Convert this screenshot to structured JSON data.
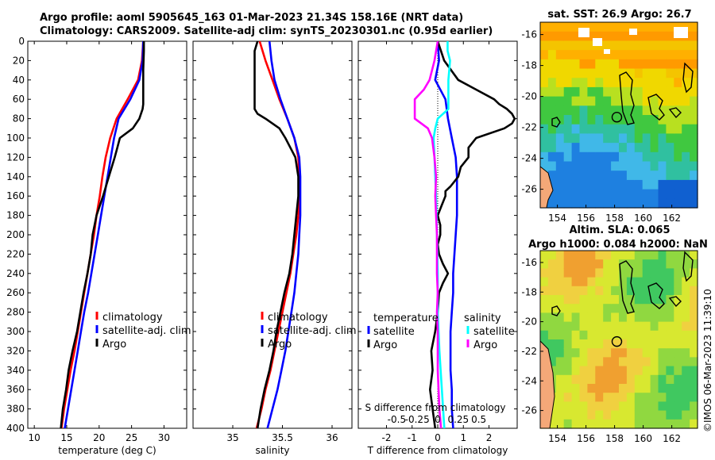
{
  "title": {
    "line1": "Argo profile: aoml 5905645_163 01-Mar-2023 21.34S 158.16E (NRT data)",
    "line2": "Climatology: CARS2009. Satellite-adj clim: synTS_20230301.nc (0.95d earlier)"
  },
  "watermark": "©IMOS 06-Mar-2023 11:39:10",
  "colors": {
    "climatology": "#ff0000",
    "satellite": "#0000ff",
    "argo": "#000000",
    "sat_salinity": "#00ffff",
    "argo_salinity": "#ff00ff"
  },
  "chart_data": [
    {
      "id": "temperature",
      "type": "line",
      "xlabel": "temperature (deg C)",
      "xlim": [
        9,
        33.5
      ],
      "xticks": [
        10,
        15,
        20,
        25,
        30
      ],
      "ylim": [
        0,
        400
      ],
      "yticks": [
        0,
        20,
        40,
        60,
        80,
        100,
        120,
        140,
        160,
        180,
        200,
        220,
        240,
        260,
        280,
        300,
        320,
        340,
        360,
        380,
        400
      ],
      "legend": [
        "climatology",
        "satellite-adj. clim",
        "Argo"
      ],
      "series": [
        {
          "name": "climatology",
          "color": "#ff0000",
          "depth": [
            0,
            20,
            40,
            60,
            80,
            100,
            120,
            140,
            160,
            180,
            200,
            220,
            240,
            260,
            280,
            300,
            320,
            340,
            360,
            380,
            400
          ],
          "values": [
            26.8,
            26.6,
            26.0,
            24.4,
            22.7,
            21.7,
            21.0,
            20.5,
            20.1,
            19.6,
            19.2,
            18.7,
            18.2,
            17.7,
            17.2,
            16.7,
            16.2,
            15.6,
            15.1,
            14.6,
            14.2
          ]
        },
        {
          "name": "satellite-adj. clim",
          "color": "#0000ff",
          "depth": [
            0,
            20,
            40,
            60,
            80,
            100,
            120,
            140,
            160,
            180,
            200,
            220,
            240,
            260,
            280,
            300,
            320,
            340,
            360,
            380,
            400
          ],
          "values": [
            26.8,
            26.7,
            26.2,
            24.8,
            23.0,
            22.3,
            21.8,
            21.3,
            20.8,
            20.3,
            19.8,
            19.3,
            18.8,
            18.3,
            17.7,
            17.2,
            16.7,
            16.2,
            15.7,
            15.2,
            14.7
          ]
        },
        {
          "name": "Argo",
          "color": "#000000",
          "depth": [
            0,
            10,
            30,
            50,
            65,
            70,
            80,
            90,
            100,
            110,
            120,
            140,
            160,
            180,
            200,
            220,
            240,
            260,
            280,
            300,
            320,
            340,
            360,
            380,
            400
          ],
          "values": [
            26.9,
            26.9,
            26.8,
            26.8,
            26.8,
            26.7,
            26.2,
            25.2,
            23.2,
            22.8,
            22.4,
            21.5,
            20.6,
            19.6,
            19.0,
            18.7,
            18.2,
            17.6,
            17.1,
            16.6,
            15.9,
            15.3,
            14.9,
            14.4,
            14.1
          ]
        }
      ]
    },
    {
      "id": "salinity",
      "type": "line",
      "xlabel": "salinity",
      "xlim": [
        34.6,
        36.2
      ],
      "xticks": [
        35,
        35.5,
        36
      ],
      "ylim": [
        0,
        400
      ],
      "legend": [
        "climatology",
        "satellite-adj. clim",
        "Argo"
      ],
      "series": [
        {
          "name": "climatology",
          "color": "#ff0000",
          "depth": [
            0,
            20,
            40,
            60,
            80,
            100,
            120,
            140,
            160,
            180,
            200,
            220,
            240,
            260,
            280,
            300,
            320,
            340,
            360,
            380,
            400
          ],
          "values": [
            35.27,
            35.33,
            35.4,
            35.47,
            35.55,
            35.62,
            35.66,
            35.67,
            35.67,
            35.66,
            35.64,
            35.61,
            35.58,
            35.54,
            35.5,
            35.46,
            35.42,
            35.38,
            35.33,
            35.29,
            35.24
          ]
        },
        {
          "name": "satellite-adj. clim",
          "color": "#0000ff",
          "depth": [
            0,
            20,
            40,
            60,
            80,
            100,
            120,
            140,
            160,
            180,
            200,
            220,
            240,
            260,
            280,
            300,
            320,
            340,
            360,
            380,
            400
          ],
          "values": [
            35.37,
            35.39,
            35.42,
            35.48,
            35.55,
            35.62,
            35.67,
            35.68,
            35.68,
            35.68,
            35.67,
            35.66,
            35.64,
            35.62,
            35.59,
            35.56,
            35.53,
            35.49,
            35.45,
            35.4,
            35.35
          ]
        },
        {
          "name": "Argo",
          "color": "#000000",
          "depth": [
            0,
            10,
            30,
            50,
            70,
            75,
            80,
            90,
            100,
            110,
            120,
            140,
            160,
            180,
            200,
            220,
            240,
            260,
            280,
            300,
            320,
            340,
            360,
            380,
            400
          ],
          "values": [
            35.25,
            35.22,
            35.22,
            35.22,
            35.22,
            35.25,
            35.33,
            35.47,
            35.53,
            35.58,
            35.63,
            35.66,
            35.66,
            35.64,
            35.62,
            35.6,
            35.57,
            35.52,
            35.48,
            35.44,
            35.41,
            35.37,
            35.32,
            35.28,
            35.25
          ]
        }
      ]
    },
    {
      "id": "difference",
      "type": "line",
      "xlabel": "T difference from climatology",
      "xlabel_top": "S difference from climatology",
      "xlim": [
        -3.1,
        3.1
      ],
      "xticks": [
        -2,
        -1,
        0,
        1,
        2
      ],
      "xticks_top": [
        "-0.5",
        "-0.25",
        "0",
        "0.25",
        "0.5"
      ],
      "xticks_top_values": [
        -0.5,
        -0.25,
        0,
        0.25,
        0.5
      ],
      "ylim": [
        0,
        400
      ],
      "legend_left_title": "temperature",
      "legend_right_title": "salinity",
      "legend_left": [
        "satellite",
        "Argo"
      ],
      "legend_right": [
        "satellite",
        "Argo"
      ],
      "series": [
        {
          "name": "temperature satellite",
          "color": "#0000ff",
          "depth": [
            0,
            20,
            40,
            60,
            80,
            100,
            120,
            140,
            160,
            180,
            200,
            220,
            240,
            260,
            280,
            300,
            320,
            340,
            360,
            380,
            400
          ],
          "values": [
            0.0,
            0.05,
            -0.1,
            0.3,
            0.4,
            0.55,
            0.7,
            0.75,
            0.75,
            0.75,
            0.7,
            0.65,
            0.6,
            0.6,
            0.55,
            0.5,
            0.5,
            0.5,
            0.55,
            0.55,
            0.6
          ]
        },
        {
          "name": "temperature Argo",
          "color": "#000000",
          "depth": [
            0,
            20,
            40,
            50,
            60,
            65,
            70,
            75,
            80,
            85,
            90,
            100,
            110,
            120,
            130,
            140,
            150,
            155,
            160,
            170,
            180,
            190,
            200,
            210,
            220,
            230,
            240,
            250,
            260,
            280,
            300,
            320,
            340,
            360,
            380,
            400
          ],
          "values": [
            0.0,
            0.25,
            0.8,
            1.5,
            2.2,
            2.4,
            2.7,
            2.9,
            3.0,
            2.9,
            2.6,
            1.5,
            1.2,
            1.2,
            0.9,
            0.8,
            0.5,
            0.3,
            0.3,
            0.15,
            0.0,
            0.1,
            0.1,
            0.0,
            0.05,
            0.2,
            0.4,
            0.2,
            0.05,
            0.0,
            -0.1,
            -0.25,
            -0.2,
            -0.3,
            -0.2,
            -0.1
          ]
        },
        {
          "name": "salinity satellite",
          "color": "#00ffff",
          "depth": [
            0,
            10,
            20,
            30,
            40,
            50,
            60,
            70,
            80,
            90,
            100,
            120,
            140,
            160,
            200,
            240,
            280,
            320,
            360,
            400
          ],
          "values": [
            0.12,
            0.12,
            0.15,
            0.14,
            0.13,
            0.13,
            0.13,
            0.13,
            0.0,
            -0.03,
            -0.05,
            -0.04,
            -0.03,
            -0.02,
            -0.01,
            0.0,
            0.0,
            0.02,
            0.05,
            0.08
          ]
        },
        {
          "name": "salinity Argo",
          "color": "#ff00ff",
          "depth": [
            0,
            20,
            40,
            50,
            60,
            70,
            80,
            90,
            100,
            120,
            140,
            160,
            180,
            200,
            220,
            240,
            260,
            280,
            300,
            320,
            340,
            360,
            380,
            400
          ],
          "values": [
            0.0,
            -0.04,
            -0.1,
            -0.17,
            -0.28,
            -0.28,
            -0.28,
            -0.12,
            -0.07,
            -0.04,
            -0.02,
            -0.03,
            -0.02,
            -0.01,
            -0.01,
            -0.01,
            0.0,
            -0.01,
            0.0,
            0.0,
            0.0,
            0.01,
            0.02,
            0.04
          ]
        }
      ]
    },
    {
      "id": "sst_map",
      "type": "heatmap",
      "title": "sat. SST: 26.9 Argo: 26.7",
      "xticks": [
        "154",
        "156",
        "158",
        "160",
        "162"
      ],
      "xtick_values": [
        154,
        156,
        158,
        160,
        162
      ],
      "yticks": [
        "-16",
        "-18",
        "-20",
        "-22",
        "-24",
        "-26"
      ],
      "ytick_values": [
        -16,
        -18,
        -20,
        -22,
        -24,
        -26
      ],
      "xlim": [
        152.8,
        163.8
      ],
      "ylim": [
        -27.2,
        -15.2
      ],
      "argo_position": [
        158.16,
        -21.34
      ]
    },
    {
      "id": "sla_map",
      "type": "heatmap",
      "title_line1": "Altim. SLA: 0.065",
      "title_line2": "Argo h1000: 0.084 h2000: NaN",
      "xticks": [
        "154",
        "156",
        "158",
        "160",
        "162"
      ],
      "xtick_values": [
        154,
        156,
        158,
        160,
        162
      ],
      "yticks": [
        "-16",
        "-18",
        "-20",
        "-22",
        "-24",
        "-26"
      ],
      "ytick_values": [
        -16,
        -18,
        -20,
        -22,
        -24,
        -26
      ],
      "xlim": [
        152.8,
        163.8
      ],
      "ylim": [
        -27.2,
        -15.2
      ],
      "argo_position": [
        158.16,
        -21.34
      ]
    }
  ]
}
